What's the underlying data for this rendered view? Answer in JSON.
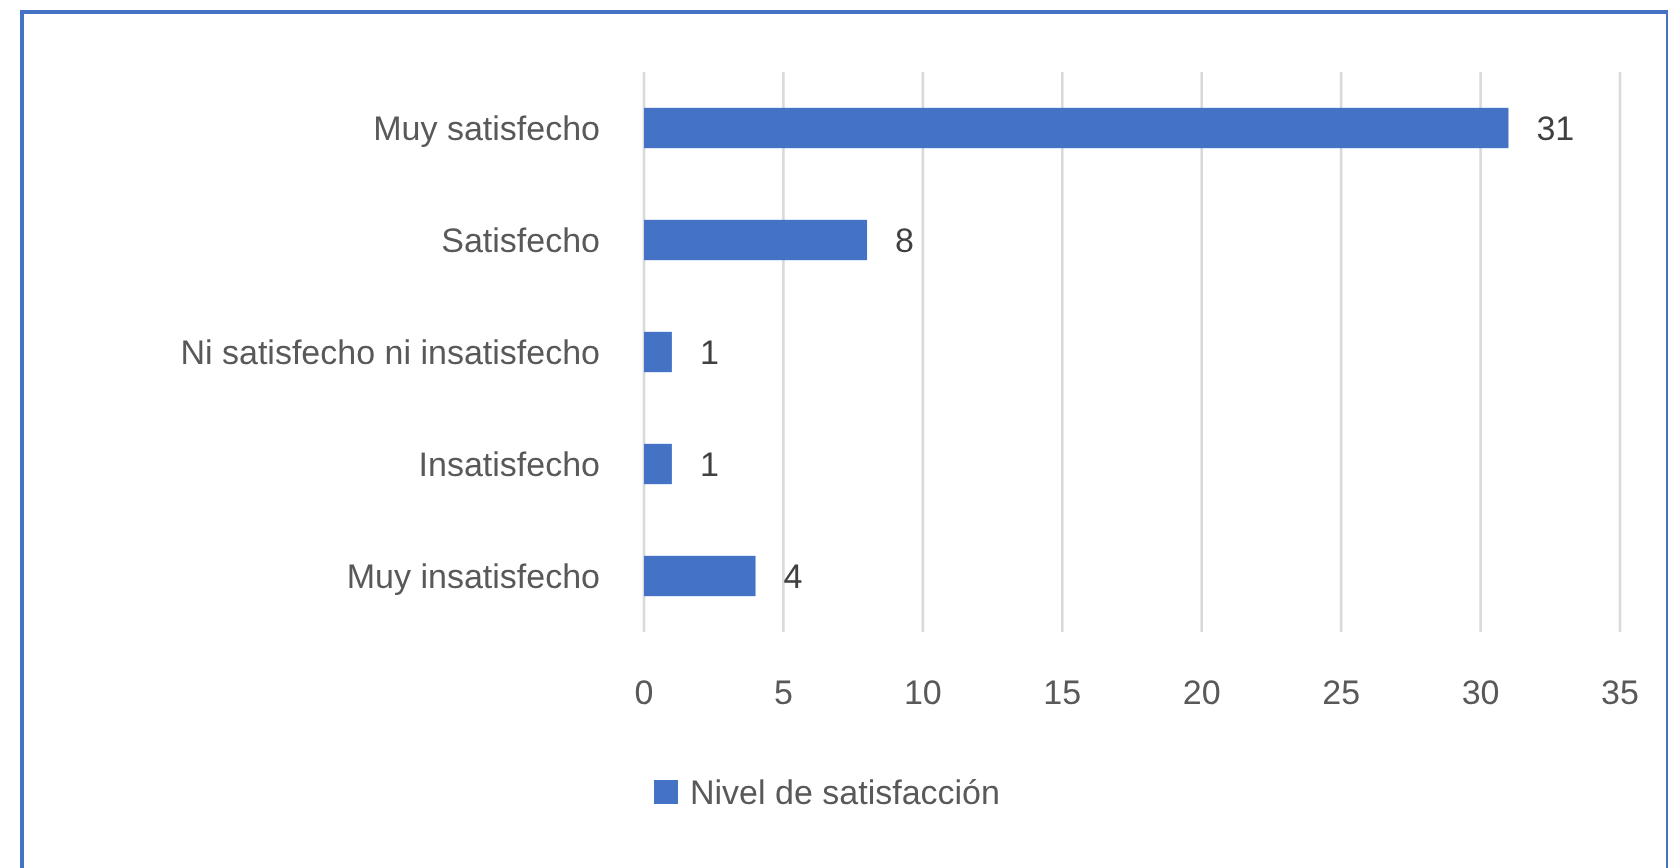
{
  "chart_data": {
    "type": "bar",
    "orientation": "horizontal",
    "categories": [
      "Muy satisfecho",
      "Satisfecho",
      "Ni satisfecho ni insatisfecho",
      "Insatisfecho",
      "Muy insatisfecho"
    ],
    "series": [
      {
        "name": "Nivel de satisfacción",
        "color": "#4472c4",
        "values": [
          31,
          8,
          1,
          1,
          4
        ]
      }
    ],
    "xlim": [
      0,
      35
    ],
    "xticks": [
      0,
      5,
      10,
      15,
      20,
      25,
      30,
      35
    ],
    "grid": "x",
    "legend": "bottom",
    "data_labels": true
  }
}
